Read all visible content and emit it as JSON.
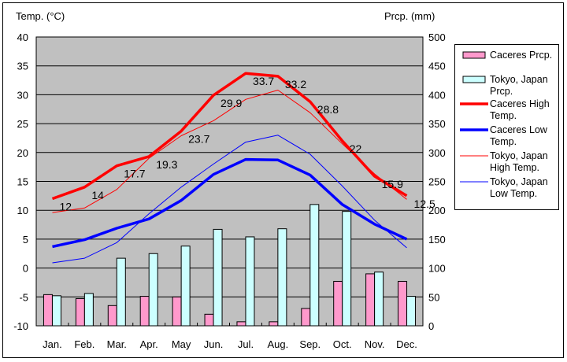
{
  "chart_data": {
    "type": "bar+line",
    "title": "",
    "ylabel_left": "Temp. (°C)",
    "ylabel_right": "Prcp. (mm)",
    "ylim_left": [
      -10,
      40
    ],
    "ylim_right": [
      0,
      500
    ],
    "yticks_left": [
      "40",
      "35",
      "30",
      "25",
      "20",
      "15",
      "10",
      "5",
      "0",
      "-5",
      "-10"
    ],
    "yticks_right": [
      "500",
      "450",
      "400",
      "350",
      "300",
      "250",
      "200",
      "150",
      "100",
      "50",
      "0"
    ],
    "categories": [
      "Jan.",
      "Feb.",
      "Mar.",
      "Apr.",
      "May",
      "Jun.",
      "Jul.",
      "Aug.",
      "Sep.",
      "Oct.",
      "Nov.",
      "Dec."
    ],
    "grid": true,
    "legend_position": "right",
    "series": [
      {
        "name": "Caceres Prcp.",
        "type": "bar",
        "axis": "right",
        "color": "#ff99cc",
        "values": [
          54,
          47,
          35,
          51,
          50,
          20,
          7,
          7,
          30,
          77,
          90,
          77
        ]
      },
      {
        "name": "Tokyo, Japan Prcp.",
        "type": "bar",
        "axis": "right",
        "color": "#ccffff",
        "values": [
          52,
          56,
          117,
          125,
          138,
          167,
          154,
          168,
          210,
          198,
          93,
          51
        ]
      },
      {
        "name": "Caceres High Temp.",
        "type": "line",
        "axis": "left",
        "color": "#ff0000",
        "width": "thick",
        "values": [
          12,
          14,
          17.7,
          19.3,
          23.7,
          29.9,
          33.7,
          33.2,
          28.8,
          22,
          15.9,
          12.5
        ],
        "labels": [
          "12",
          "14",
          "17.7",
          "19.3",
          "23.7",
          "29.9",
          "33.7",
          "33.2",
          "28.8",
          "22",
          "15.9",
          "12.5"
        ]
      },
      {
        "name": "Caceres Low Temp.",
        "type": "line",
        "axis": "left",
        "color": "#0000ff",
        "width": "thick",
        "values": [
          3.7,
          4.9,
          6.9,
          8.5,
          11.7,
          16.2,
          18.8,
          18.7,
          16.1,
          11.0,
          7.6,
          5.0
        ]
      },
      {
        "name": "Tokyo, Japan High Temp.",
        "type": "line",
        "axis": "left",
        "color": "#ff0000",
        "width": "thin",
        "values": [
          9.6,
          10.4,
          13.6,
          19.0,
          22.9,
          25.5,
          29.2,
          30.8,
          26.9,
          21.5,
          16.3,
          11.9
        ]
      },
      {
        "name": "Tokyo, Japan Low Temp.",
        "type": "line",
        "axis": "left",
        "color": "#0000ff",
        "width": "thin",
        "values": [
          0.9,
          1.7,
          4.4,
          9.4,
          14.0,
          18.0,
          21.8,
          23.0,
          19.7,
          14.2,
          8.3,
          3.5
        ]
      }
    ]
  },
  "legend": {
    "items": [
      {
        "label": "Caceres Prcp.",
        "kind": "box",
        "color": "#ff99cc"
      },
      {
        "label": "Tokyo, Japan Prcp.",
        "kind": "box",
        "color": "#ccffff"
      },
      {
        "label": "Caceres High Temp.",
        "kind": "thick-line",
        "color": "#ff0000"
      },
      {
        "label": "Caceres Low Temp.",
        "kind": "thick-line",
        "color": "#0000ff"
      },
      {
        "label": "Tokyo, Japan High Temp.",
        "kind": "thin-line",
        "color": "#ff0000"
      },
      {
        "label": "Tokyo, Japan Low Temp.",
        "kind": "thin-line",
        "color": "#0000ff"
      }
    ]
  },
  "colors": {
    "plot_bg": "#c0c0c0",
    "grid": "#000000"
  }
}
